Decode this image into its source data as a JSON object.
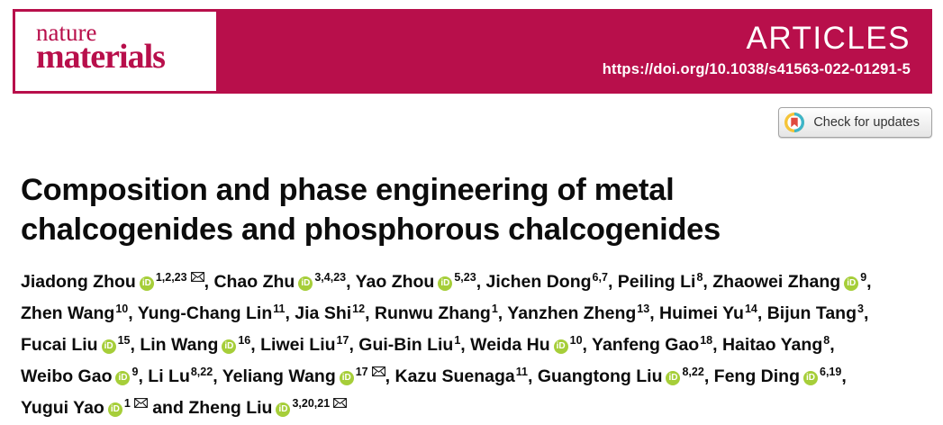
{
  "brand": {
    "journal_word1": "nature",
    "journal_word2": "materials",
    "crimson": "#b80f4b",
    "article_type": "ARTICLES",
    "doi": "https://doi.org/10.1038/s41563-022-01291-5"
  },
  "badge": {
    "label": "Check for updates",
    "icon": "crossmark-icon",
    "icon_colors": {
      "ring_yellow": "#f5c438",
      "ring_teal": "#3db5c9",
      "bookmark_red": "#e04a3f"
    }
  },
  "article": {
    "title": "Composition and phase engineering of metal chalcogenides and phosphorous chalcogenides"
  },
  "authors": {
    "orcid_color": "#a6ce39",
    "orcid_label": "iD",
    "lines": [
      [
        {
          "name": "Jiadong Zhou",
          "orcid": true,
          "sup": "1,2,23",
          "mail": true,
          "sep": ", "
        },
        {
          "name": "Chao Zhu",
          "orcid": true,
          "sup": "3,4,23",
          "sep": ", "
        },
        {
          "name": "Yao Zhou",
          "orcid": true,
          "sup": "5,23",
          "sep": ", "
        },
        {
          "name": "Jichen Dong",
          "sup": "6,7",
          "sep": ", "
        },
        {
          "name": "Peiling Li",
          "sup": "8",
          "sep": ", "
        },
        {
          "name": "Zhaowei Zhang",
          "orcid": true,
          "sup": "9",
          "sep": ","
        }
      ],
      [
        {
          "name": "Zhen Wang",
          "sup": "10",
          "sep": ", "
        },
        {
          "name": "Yung-Chang Lin",
          "sup": "11",
          "sep": ", "
        },
        {
          "name": "Jia Shi",
          "sup": "12",
          "sep": ", "
        },
        {
          "name": "Runwu Zhang",
          "sup": "1",
          "sep": ", "
        },
        {
          "name": "Yanzhen Zheng",
          "sup": "13",
          "sep": ", "
        },
        {
          "name": "Huimei Yu",
          "sup": "14",
          "sep": ", "
        },
        {
          "name": "Bijun Tang",
          "sup": "3",
          "sep": ","
        }
      ],
      [
        {
          "name": "Fucai Liu",
          "orcid": true,
          "sup": "15",
          "sep": ", "
        },
        {
          "name": "Lin Wang",
          "orcid": true,
          "sup": "16",
          "sep": ", "
        },
        {
          "name": "Liwei Liu",
          "sup": "17",
          "sep": ", "
        },
        {
          "name": "Gui-Bin Liu",
          "sup": "1",
          "sep": ", "
        },
        {
          "name": "Weida Hu",
          "orcid": true,
          "sup": "10",
          "sep": ", "
        },
        {
          "name": "Yanfeng Gao",
          "sup": "18",
          "sep": ", "
        },
        {
          "name": "Haitao Yang",
          "sup": "8",
          "sep": ","
        }
      ],
      [
        {
          "name": "Weibo Gao",
          "orcid": true,
          "sup": "9",
          "sep": ", "
        },
        {
          "name": "Li Lu",
          "sup": "8,22",
          "sep": ", "
        },
        {
          "name": "Yeliang Wang",
          "orcid": true,
          "sup": "17",
          "mail": true,
          "sep": ", "
        },
        {
          "name": "Kazu Suenaga",
          "sup": "11",
          "sep": ", "
        },
        {
          "name": "Guangtong Liu",
          "orcid": true,
          "sup": "8,22",
          "sep": ", "
        },
        {
          "name": "Feng Ding",
          "orcid": true,
          "sup": "6,19",
          "sep": ","
        }
      ],
      [
        {
          "name": "Yugui Yao",
          "orcid": true,
          "sup": "1",
          "mail": true,
          "sep": " and "
        },
        {
          "name": "Zheng Liu",
          "orcid": true,
          "sup": "3,20,21",
          "mail": true,
          "sep": ""
        }
      ]
    ]
  }
}
